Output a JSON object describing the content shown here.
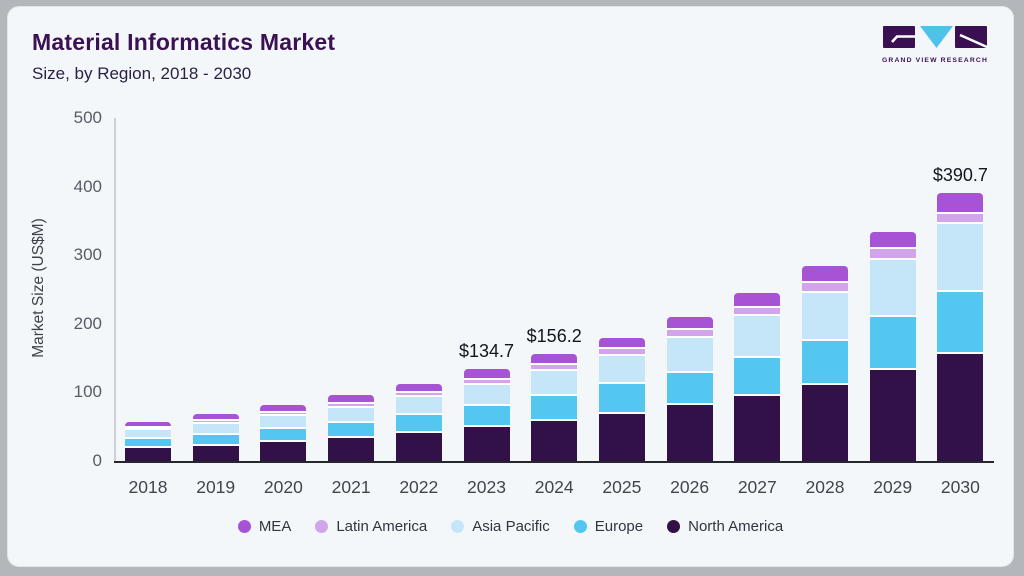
{
  "header": {
    "title": "Material Informatics Market",
    "subtitle": "Size, by Region, 2018 - 2030"
  },
  "logo": {
    "name": "gvr-logo",
    "caption": "GRAND VIEW RESEARCH",
    "brand_purple": "#3b1053",
    "brand_blue": "#4fc2e9"
  },
  "chart_data": {
    "type": "bar",
    "stacked": true,
    "title": "Material Informatics Market Size, by Region, 2018 - 2030",
    "xlabel": "",
    "ylabel": "Market Size (US$M)",
    "ylim": [
      0,
      500
    ],
    "yticks": [
      0,
      100,
      200,
      300,
      400,
      500
    ],
    "grid": false,
    "legend_position": "bottom",
    "categories": [
      2018,
      2019,
      2020,
      2021,
      2022,
      2023,
      2024,
      2025,
      2026,
      2027,
      2028,
      2029,
      2030
    ],
    "series": [
      {
        "name": "North America",
        "color": "#311148",
        "values": [
          21.5,
          25.5,
          31,
          36.5,
          43.5,
          52,
          61,
          71.5,
          84,
          98,
          114,
          136,
          158.5
        ]
      },
      {
        "name": "Europe",
        "color": "#53c7ef",
        "values": [
          13.5,
          16,
          19,
          22.5,
          26.5,
          31.5,
          37,
          44,
          48,
          56,
          64,
          77,
          91.5
        ]
      },
      {
        "name": "Asia Pacific",
        "color": "#c4e6f8",
        "values": [
          12.5,
          15,
          18.5,
          22,
          26,
          30.5,
          36,
          40,
          50,
          60,
          70,
          83.5,
          98.2
        ]
      },
      {
        "name": "Latin America",
        "color": "#d2a4e9",
        "values": [
          3.7,
          4.3,
          5,
          5.7,
          6.5,
          7.8,
          8.7,
          10.5,
          11.5,
          13,
          14.5,
          15.5,
          16
        ]
      },
      {
        "name": "MEA",
        "color": "#a653d6",
        "values": [
          6.3,
          7.2,
          8.5,
          9.3,
          10.5,
          12.9,
          13.5,
          14,
          16.5,
          18,
          22.5,
          23,
          26.5
        ]
      }
    ],
    "totals": [
      57.5,
      68,
      82,
      96,
      113,
      134.7,
      156.2,
      180,
      210,
      245,
      285,
      335,
      390.7
    ],
    "annotations": [
      {
        "year": 2023,
        "text": "$134.7"
      },
      {
        "year": 2024,
        "text": "$156.2"
      },
      {
        "year": 2030,
        "text": "$390.7"
      }
    ]
  },
  "legend": {
    "items": [
      {
        "label": "MEA",
        "color": "#a653d6"
      },
      {
        "label": "Latin America",
        "color": "#d2a4e9"
      },
      {
        "label": "Asia Pacific",
        "color": "#c4e6f8"
      },
      {
        "label": "Europe",
        "color": "#53c7ef"
      },
      {
        "label": "North America",
        "color": "#311148"
      }
    ]
  }
}
